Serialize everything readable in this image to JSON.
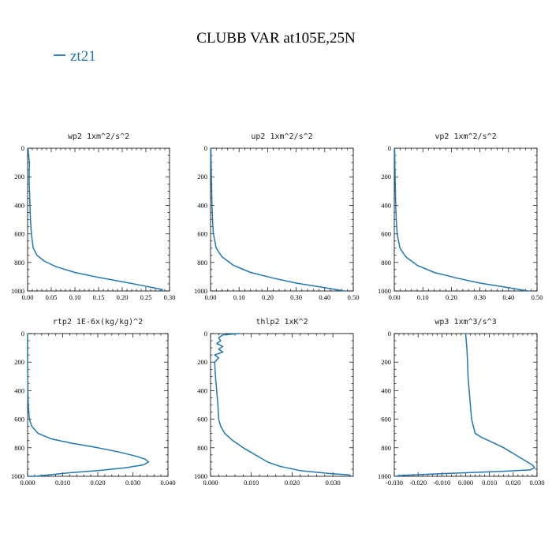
{
  "figure": {
    "title": "CLUBB VAR at105E,25N",
    "legend": {
      "label": "zt21",
      "color": "#1f77b4"
    }
  },
  "chart_data": [
    {
      "type": "line",
      "title": "wp2  1xm^2/s^2",
      "xlim": [
        0,
        0.3
      ],
      "ylim": [
        1000,
        0
      ],
      "xticks": [
        "0.00",
        "0.05",
        "0.10",
        "0.15",
        "0.20",
        "0.25",
        "0.30"
      ],
      "xtick_values": [
        0,
        0.05,
        0.1,
        0.15,
        0.2,
        0.25,
        0.3
      ],
      "yticks": [
        "0",
        "200",
        "400",
        "600",
        "800",
        "1000"
      ],
      "ytick_values": [
        0,
        200,
        400,
        600,
        800,
        1000
      ],
      "series": [
        {
          "name": "zt21",
          "x": [
            0.001,
            0.002,
            0.004,
            0.003,
            0.005,
            0.003,
            0.004,
            0.005,
            0.006,
            0.008,
            0.012,
            0.02,
            0.035,
            0.06,
            0.1,
            0.15,
            0.2,
            0.24,
            0.27,
            0.285,
            0.282
          ],
          "y": [
            0,
            50,
            100,
            195,
            200,
            210,
            300,
            400,
            500,
            600,
            700,
            750,
            790,
            830,
            870,
            905,
            935,
            960,
            980,
            990,
            1000
          ]
        }
      ]
    },
    {
      "type": "line",
      "title": "up2  1xm^2/s^2",
      "xlim": [
        0,
        0.5
      ],
      "ylim": [
        1000,
        0
      ],
      "xticks": [
        "0.00",
        "0.10",
        "0.20",
        "0.30",
        "0.40",
        "0.50"
      ],
      "xtick_values": [
        0,
        0.1,
        0.2,
        0.3,
        0.4,
        0.5
      ],
      "yticks": [
        "0",
        "200",
        "400",
        "600",
        "800",
        "1000"
      ],
      "ytick_values": [
        0,
        200,
        400,
        600,
        800,
        1000
      ],
      "series": [
        {
          "name": "zt21",
          "x": [
            0.001,
            0.002,
            0.003,
            0.004,
            0.005,
            0.007,
            0.01,
            0.02,
            0.04,
            0.08,
            0.14,
            0.22,
            0.3,
            0.38,
            0.44,
            0.47
          ],
          "y": [
            0,
            100,
            200,
            300,
            400,
            500,
            600,
            700,
            760,
            820,
            870,
            910,
            945,
            970,
            990,
            1000
          ]
        }
      ]
    },
    {
      "type": "line",
      "title": "vp2  1xm^2/s^2",
      "xlim": [
        0,
        0.5
      ],
      "ylim": [
        1000,
        0
      ],
      "xticks": [
        "0.00",
        "0.10",
        "0.20",
        "0.30",
        "0.40",
        "0.50"
      ],
      "xtick_values": [
        0,
        0.1,
        0.2,
        0.3,
        0.4,
        0.5
      ],
      "yticks": [
        "0",
        "200",
        "400",
        "600",
        "800",
        "1000"
      ],
      "ytick_values": [
        0,
        200,
        400,
        600,
        800,
        1000
      ],
      "series": [
        {
          "name": "zt21",
          "x": [
            0.001,
            0.002,
            0.003,
            0.004,
            0.005,
            0.007,
            0.01,
            0.02,
            0.04,
            0.08,
            0.14,
            0.22,
            0.3,
            0.38,
            0.44,
            0.47
          ],
          "y": [
            0,
            100,
            200,
            300,
            400,
            500,
            600,
            700,
            760,
            820,
            870,
            910,
            945,
            970,
            990,
            1000
          ]
        }
      ]
    },
    {
      "type": "line",
      "title": "rtp2  1E-6x(kg/kg)^2",
      "xlim": [
        0,
        0.04
      ],
      "ylim": [
        1000,
        0
      ],
      "xticks": [
        "0.000",
        "0.010",
        "0.020",
        "0.030",
        "0.040"
      ],
      "xtick_values": [
        0,
        0.01,
        0.02,
        0.03,
        0.04
      ],
      "yticks": [
        "0",
        "200",
        "400",
        "600",
        "800",
        "1000"
      ],
      "ytick_values": [
        0,
        200,
        400,
        600,
        800,
        1000
      ],
      "series": [
        {
          "name": "zt21",
          "x": [
            0.0,
            0.0,
            0.0001,
            0.0002,
            0.0005,
            0.0012,
            0.003,
            0.007,
            0.013,
            0.02,
            0.026,
            0.031,
            0.0335,
            0.0345,
            0.033,
            0.028,
            0.02,
            0.012,
            0.006,
            0.002,
            0.0005
          ],
          "y": [
            0,
            200,
            400,
            500,
            600,
            650,
            700,
            740,
            770,
            800,
            830,
            860,
            880,
            900,
            920,
            940,
            960,
            975,
            990,
            1000,
            1000
          ]
        }
      ]
    },
    {
      "type": "line",
      "title": "thlp2  1xK^2",
      "xlim": [
        0,
        0.035
      ],
      "ylim": [
        1000,
        0
      ],
      "xticks": [
        "0.000",
        "0.010",
        "0.020",
        "0.030"
      ],
      "xtick_values": [
        0,
        0.01,
        0.02,
        0.03
      ],
      "yticks": [
        "0",
        "200",
        "400",
        "600",
        "800",
        "1000"
      ],
      "ytick_values": [
        0,
        200,
        400,
        600,
        800,
        1000
      ],
      "series": [
        {
          "name": "zt21",
          "x": [
            0.007,
            0.003,
            0.002,
            0.0025,
            0.0015,
            0.003,
            0.002,
            0.003,
            0.001,
            0.002,
            0.001,
            0.0012,
            0.0015,
            0.0018,
            0.002,
            0.0025,
            0.0035,
            0.0055,
            0.008,
            0.011,
            0.014,
            0.017,
            0.022,
            0.029,
            0.034,
            0.0345
          ],
          "y": [
            0,
            10,
            30,
            50,
            70,
            90,
            110,
            130,
            150,
            170,
            200,
            300,
            400,
            500,
            600,
            650,
            700,
            750,
            800,
            850,
            900,
            930,
            960,
            980,
            990,
            1000
          ]
        }
      ]
    },
    {
      "type": "line",
      "title": "wp3  1xm^3/s^3",
      "xlim": [
        -0.03,
        0.03
      ],
      "ylim": [
        1000,
        0
      ],
      "xticks": [
        "-0.030",
        "-0.020",
        "-0.010",
        "0.000",
        "0.010",
        "0.020",
        "0.030"
      ],
      "xtick_values": [
        -0.03,
        -0.02,
        -0.01,
        0,
        0.01,
        0.02,
        0.03
      ],
      "yticks": [
        "0",
        "200",
        "400",
        "600",
        "800",
        "1000"
      ],
      "ytick_values": [
        0,
        200,
        400,
        600,
        800,
        1000
      ],
      "series": [
        {
          "name": "zt21",
          "x": [
            0.0,
            0.0005,
            0.0008,
            0.001,
            0.0015,
            0.002,
            0.0025,
            0.004,
            0.007,
            0.011,
            0.016,
            0.021,
            0.025,
            0.028,
            0.029,
            0.027,
            0.015,
            0.0,
            -0.015,
            -0.028,
            -0.0295
          ],
          "y": [
            0,
            100,
            200,
            300,
            400,
            500,
            600,
            700,
            730,
            760,
            800,
            850,
            890,
            920,
            940,
            955,
            965,
            975,
            985,
            995,
            1000
          ]
        }
      ]
    }
  ]
}
